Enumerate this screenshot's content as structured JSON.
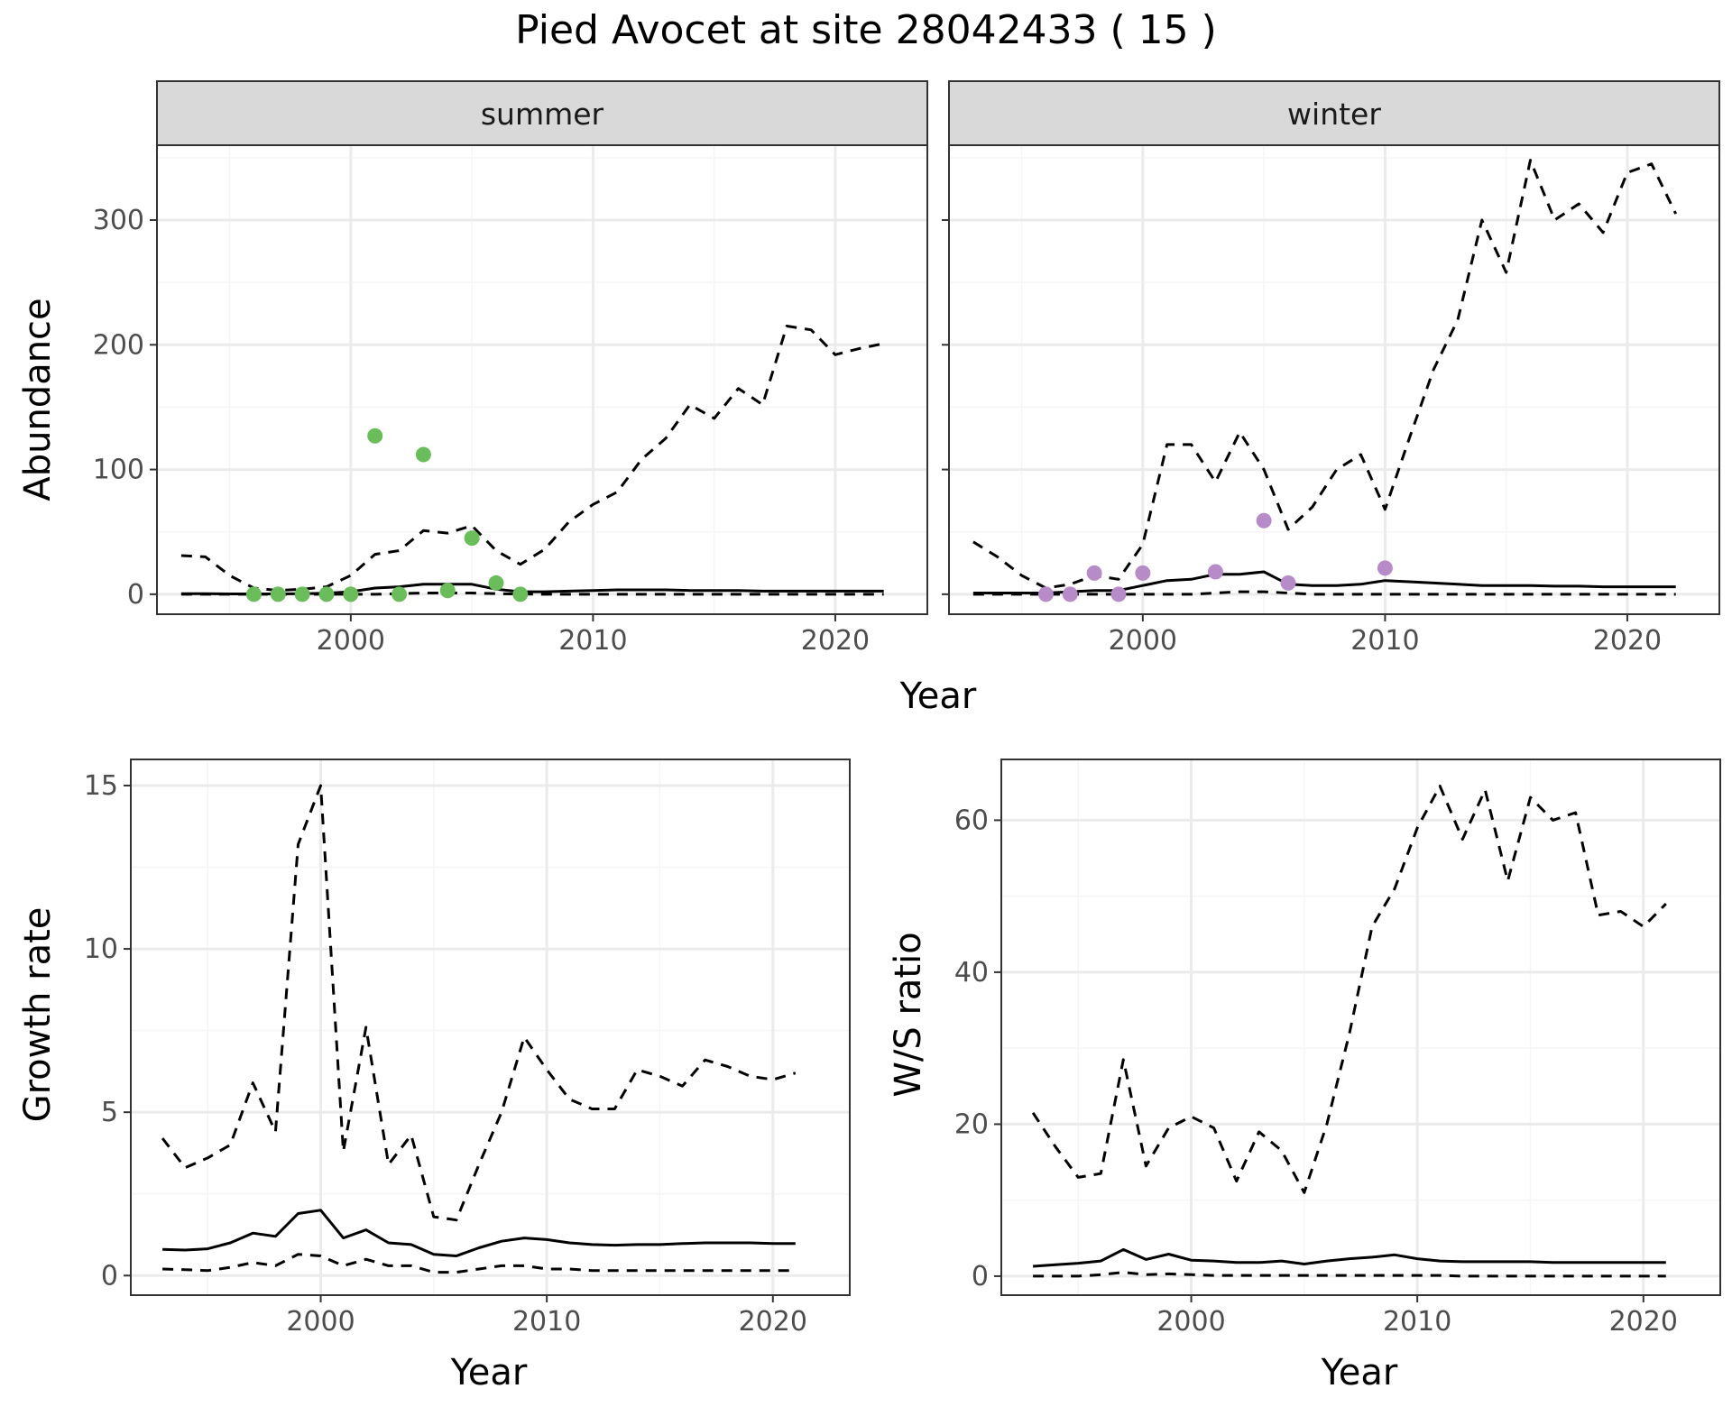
{
  "title": "Pied Avocet at site 28042433 ( 15 )",
  "colors": {
    "summer_points": "#6ABD5A",
    "winter_points": "#B68BC8",
    "line": "#000000",
    "grid_major": "#EBEBEB",
    "grid_minor": "#F5F5F5",
    "strip_bg": "#D9D9D9",
    "panel_border": "#333333"
  },
  "chart_data": [
    {
      "id": "summer",
      "type": "line",
      "facet_label": "summer",
      "xlabel": "Year",
      "ylabel": "Abundance",
      "xlim": [
        1992,
        2023.8
      ],
      "ylim": [
        -16,
        360
      ],
      "xticks": [
        2000,
        2010,
        2020
      ],
      "yticks": [
        0,
        100,
        200,
        300
      ],
      "series": [
        {
          "name": "upper",
          "style": "dashed",
          "x": [
            1993,
            1994,
            1995,
            1996,
            1997,
            1998,
            1999,
            2000,
            2001,
            2002,
            2003,
            2004,
            2005,
            2006,
            2007,
            2008,
            2009,
            2010,
            2011,
            2012,
            2013,
            2014,
            2015,
            2016,
            2017,
            2018,
            2019,
            2020,
            2021,
            2022
          ],
          "y": [
            31,
            30,
            15,
            5,
            3,
            4,
            6,
            15,
            32,
            35,
            51,
            49,
            55,
            35,
            24,
            36,
            58,
            72,
            82,
            108,
            125,
            152,
            141,
            165,
            152,
            215,
            212,
            192,
            197,
            201
          ]
        },
        {
          "name": "mid",
          "style": "solid",
          "x": [
            1993,
            1994,
            1995,
            1996,
            1997,
            1998,
            1999,
            2000,
            2001,
            2002,
            2003,
            2004,
            2005,
            2006,
            2007,
            2008,
            2009,
            2010,
            2011,
            2012,
            2013,
            2014,
            2015,
            2016,
            2017,
            2018,
            2019,
            2020,
            2021,
            2022
          ],
          "y": [
            0.5,
            0.5,
            0.3,
            0.3,
            0.3,
            0.5,
            0.8,
            2,
            5,
            6,
            8,
            8,
            8,
            4,
            2,
            2,
            2.5,
            3,
            3.5,
            3.5,
            3.5,
            3,
            3,
            3,
            2.5,
            2.5,
            2.5,
            2.5,
            2.5,
            2.5
          ]
        },
        {
          "name": "lower",
          "style": "dashed",
          "x": [
            1993,
            1994,
            1995,
            1996,
            1997,
            1998,
            1999,
            2000,
            2001,
            2002,
            2003,
            2004,
            2005,
            2006,
            2007,
            2008,
            2009,
            2010,
            2011,
            2012,
            2013,
            2014,
            2015,
            2016,
            2017,
            2018,
            2019,
            2020,
            2021,
            2022
          ],
          "y": [
            0,
            0,
            0,
            0,
            0,
            0,
            0,
            0,
            0,
            0.5,
            1,
            1,
            1,
            0.5,
            0.2,
            0,
            0,
            0,
            0,
            0,
            0,
            0,
            0,
            0,
            0,
            0,
            0,
            0,
            0,
            0
          ]
        }
      ],
      "points": {
        "x": [
          1996,
          1997,
          1998,
          1999,
          2000,
          2001,
          2002,
          2003,
          2004,
          2005,
          2006,
          2007
        ],
        "y": [
          0,
          0,
          0,
          0,
          0,
          127,
          0,
          112,
          3,
          45,
          9,
          0
        ]
      }
    },
    {
      "id": "winter",
      "type": "line",
      "facet_label": "winter",
      "xlabel": "Year",
      "ylabel": "Abundance",
      "xlim": [
        1992,
        2023.8
      ],
      "ylim": [
        -16,
        360
      ],
      "xticks": [
        2000,
        2010,
        2020
      ],
      "yticks": [
        0,
        100,
        200,
        300
      ],
      "series": [
        {
          "name": "upper",
          "style": "dashed",
          "x": [
            1993,
            1994,
            1995,
            1996,
            1997,
            1998,
            1999,
            2000,
            2001,
            2002,
            2003,
            2004,
            2005,
            2006,
            2007,
            2008,
            2009,
            2010,
            2011,
            2012,
            2013,
            2014,
            2015,
            2016,
            2017,
            2018,
            2019,
            2020,
            2021,
            2022
          ],
          "y": [
            42,
            30,
            15,
            5,
            8,
            15,
            12,
            40,
            120,
            120,
            90,
            130,
            100,
            52,
            70,
            100,
            112,
            68,
            125,
            180,
            220,
            300,
            258,
            348,
            300,
            313,
            290,
            338,
            345,
            305
          ]
        },
        {
          "name": "mid",
          "style": "solid",
          "x": [
            1993,
            1994,
            1995,
            1996,
            1997,
            1998,
            1999,
            2000,
            2001,
            2002,
            2003,
            2004,
            2005,
            2006,
            2007,
            2008,
            2009,
            2010,
            2011,
            2012,
            2013,
            2014,
            2015,
            2016,
            2017,
            2018,
            2019,
            2020,
            2021,
            2022
          ],
          "y": [
            1,
            1,
            1,
            1,
            2,
            3,
            3,
            7,
            11,
            12,
            16,
            16,
            18,
            8,
            7,
            7,
            8,
            11,
            10,
            9,
            8,
            7,
            7,
            7,
            6.5,
            6.5,
            6,
            6,
            6,
            6
          ]
        },
        {
          "name": "lower",
          "style": "dashed",
          "x": [
            1993,
            1994,
            1995,
            1996,
            1997,
            1998,
            1999,
            2000,
            2001,
            2002,
            2003,
            2004,
            2005,
            2006,
            2007,
            2008,
            2009,
            2010,
            2011,
            2012,
            2013,
            2014,
            2015,
            2016,
            2017,
            2018,
            2019,
            2020,
            2021,
            2022
          ],
          "y": [
            0,
            0,
            0,
            0,
            0,
            0,
            0,
            0,
            0,
            0,
            1,
            2,
            2,
            1,
            0,
            0,
            0,
            0,
            0,
            0,
            0,
            0,
            0,
            0,
            0,
            0,
            0,
            0,
            0,
            0
          ]
        }
      ],
      "points": {
        "x": [
          1996,
          1997,
          1998,
          1999,
          2000,
          2003,
          2005,
          2006,
          2010
        ],
        "y": [
          0,
          0,
          17,
          0,
          17,
          18,
          59,
          9,
          21
        ]
      }
    },
    {
      "id": "growth",
      "type": "line",
      "xlabel": "Year",
      "ylabel": "Growth rate",
      "xlim": [
        1991.6,
        2023.4
      ],
      "ylim": [
        -0.6,
        15.8
      ],
      "xticks": [
        2000,
        2010,
        2020
      ],
      "yticks": [
        0,
        5,
        10,
        15
      ],
      "series": [
        {
          "name": "upper",
          "style": "dashed",
          "x": [
            1993,
            1994,
            1995,
            1996,
            1997,
            1998,
            1999,
            2000,
            2001,
            2002,
            2003,
            2004,
            2005,
            2006,
            2007,
            2008,
            2009,
            2010,
            2011,
            2012,
            2013,
            2014,
            2015,
            2016,
            2017,
            2018,
            2019,
            2020,
            2021
          ],
          "y": [
            4.2,
            3.3,
            3.6,
            4.0,
            5.9,
            4.4,
            13.2,
            15.0,
            3.8,
            7.6,
            3.4,
            4.3,
            1.8,
            1.7,
            3.4,
            5.0,
            7.3,
            6.3,
            5.4,
            5.1,
            5.1,
            6.3,
            6.1,
            5.8,
            6.6,
            6.4,
            6.1,
            6.0,
            6.2
          ]
        },
        {
          "name": "mid",
          "style": "solid",
          "x": [
            1993,
            1994,
            1995,
            1996,
            1997,
            1998,
            1999,
            2000,
            2001,
            2002,
            2003,
            2004,
            2005,
            2006,
            2007,
            2008,
            2009,
            2010,
            2011,
            2012,
            2013,
            2014,
            2015,
            2016,
            2017,
            2018,
            2019,
            2020,
            2021
          ],
          "y": [
            0.8,
            0.78,
            0.82,
            1.0,
            1.3,
            1.2,
            1.9,
            2.0,
            1.15,
            1.4,
            1.0,
            0.95,
            0.65,
            0.6,
            0.85,
            1.05,
            1.15,
            1.1,
            1.0,
            0.95,
            0.93,
            0.95,
            0.95,
            0.98,
            1.0,
            1.0,
            1.0,
            0.98,
            0.98
          ]
        },
        {
          "name": "lower",
          "style": "dashed",
          "x": [
            1993,
            1994,
            1995,
            1996,
            1997,
            1998,
            1999,
            2000,
            2001,
            2002,
            2003,
            2004,
            2005,
            2006,
            2007,
            2008,
            2009,
            2010,
            2011,
            2012,
            2013,
            2014,
            2015,
            2016,
            2017,
            2018,
            2019,
            2020,
            2021
          ],
          "y": [
            0.2,
            0.18,
            0.15,
            0.25,
            0.4,
            0.3,
            0.65,
            0.6,
            0.3,
            0.5,
            0.3,
            0.3,
            0.1,
            0.1,
            0.2,
            0.3,
            0.3,
            0.2,
            0.2,
            0.15,
            0.15,
            0.15,
            0.15,
            0.15,
            0.15,
            0.15,
            0.15,
            0.15,
            0.15
          ]
        }
      ]
    },
    {
      "id": "ws_ratio",
      "type": "line",
      "xlabel": "Year",
      "ylabel": "W/S ratio",
      "xlim": [
        1991.6,
        2023.4
      ],
      "ylim": [
        -2.5,
        68
      ],
      "xticks": [
        2000,
        2010,
        2020
      ],
      "yticks": [
        0,
        20,
        40,
        60
      ],
      "series": [
        {
          "name": "upper",
          "style": "dashed",
          "x": [
            1993,
            1994,
            1995,
            1996,
            1997,
            1998,
            1999,
            2000,
            2001,
            2002,
            2003,
            2004,
            2005,
            2006,
            2007,
            2008,
            2009,
            2010,
            2011,
            2012,
            2013,
            2014,
            2015,
            2016,
            2017,
            2018,
            2019,
            2020,
            2021
          ],
          "y": [
            21.5,
            17,
            13,
            13.5,
            28.5,
            14.5,
            19.5,
            21,
            19.5,
            12.5,
            19,
            16.5,
            11,
            20,
            32,
            46,
            51,
            59,
            64.5,
            57.5,
            64,
            52,
            63,
            60,
            61,
            47.5,
            48,
            46,
            49
          ]
        },
        {
          "name": "mid",
          "style": "solid",
          "x": [
            1993,
            1994,
            1995,
            1996,
            1997,
            1998,
            1999,
            2000,
            2001,
            2002,
            2003,
            2004,
            2005,
            2006,
            2007,
            2008,
            2009,
            2010,
            2011,
            2012,
            2013,
            2014,
            2015,
            2016,
            2017,
            2018,
            2019,
            2020,
            2021
          ],
          "y": [
            1.3,
            1.5,
            1.7,
            2.0,
            3.5,
            2.2,
            2.9,
            2.1,
            2.0,
            1.8,
            1.8,
            2.0,
            1.6,
            2.0,
            2.3,
            2.5,
            2.8,
            2.3,
            2.0,
            1.9,
            1.9,
            1.9,
            1.9,
            1.8,
            1.8,
            1.8,
            1.8,
            1.8,
            1.8
          ]
        },
        {
          "name": "lower",
          "style": "dashed",
          "x": [
            1993,
            1994,
            1995,
            1996,
            1997,
            1998,
            1999,
            2000,
            2001,
            2002,
            2003,
            2004,
            2005,
            2006,
            2007,
            2008,
            2009,
            2010,
            2011,
            2012,
            2013,
            2014,
            2015,
            2016,
            2017,
            2018,
            2019,
            2020,
            2021
          ],
          "y": [
            0,
            0,
            0,
            0.2,
            0.5,
            0.2,
            0.3,
            0.2,
            0.1,
            0.1,
            0.1,
            0.1,
            0.1,
            0.1,
            0.1,
            0.1,
            0.1,
            0.1,
            0.1,
            0,
            0,
            0,
            0,
            0,
            0,
            0,
            0,
            0,
            0
          ]
        }
      ]
    }
  ]
}
